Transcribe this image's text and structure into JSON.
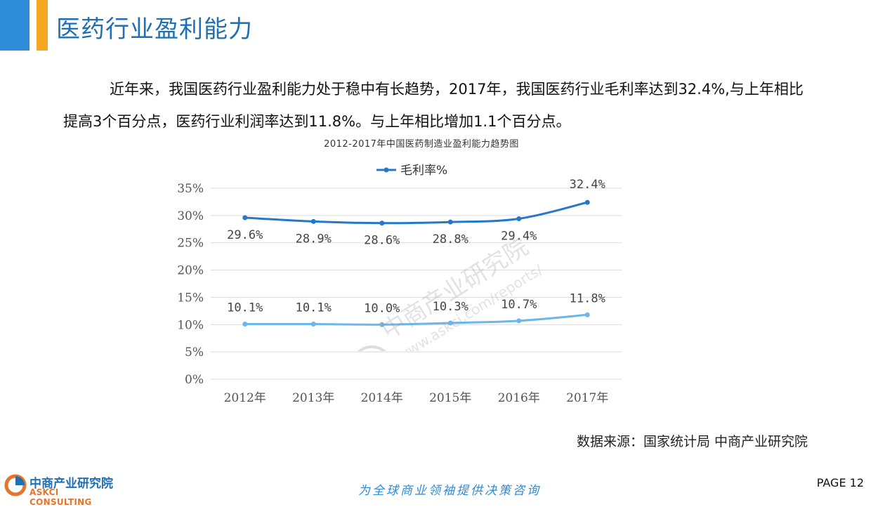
{
  "header": {
    "title": "医药行业盈利能力"
  },
  "intro": {
    "text": "近年来，我国医药行业盈利能力处于稳中有长趋势，2017年，我国医药行业毛利率达到32.4%,与上年相比提高3个百分点，医药行业利润率达到11.8%。与上年相比增加1.1个百分点。"
  },
  "chart_data": {
    "type": "line",
    "title": "2012-2017年中国医药制造业盈利能力趋势图",
    "categories": [
      "2012年",
      "2013年",
      "2014年",
      "2015年",
      "2016年",
      "2017年"
    ],
    "series": [
      {
        "name": "毛利率%",
        "values": [
          29.6,
          28.9,
          28.6,
          28.8,
          29.4,
          32.4
        ],
        "labels": [
          "29.6%",
          "28.9%",
          "28.6%",
          "28.8%",
          "29.4%",
          "32.4%"
        ],
        "color": "#2478c8"
      },
      {
        "name": "",
        "values": [
          10.1,
          10.1,
          10.0,
          10.3,
          10.7,
          11.8
        ],
        "labels": [
          "10.1%",
          "10.1%",
          "10.0%",
          "10.3%",
          "10.7%",
          "11.8%"
        ],
        "color": "#6cb6ea"
      }
    ],
    "yticks": [
      "0%",
      "5%",
      "10%",
      "15%",
      "20%",
      "25%",
      "30%",
      "35%"
    ],
    "ylim": [
      0,
      35
    ],
    "grid": true,
    "legend": "top"
  },
  "source": {
    "text": "数据来源：国家统计局 中商产业研究院"
  },
  "footer": {
    "logo_cn": "中商产业研究院",
    "logo_en": "ASKCI CONSULTING",
    "slogan": "为全球商业领袖提供决策咨询",
    "page": "PAGE 12"
  },
  "watermark": {
    "cn": "中商产业研究院",
    "url": "www.askci.com/reports/"
  }
}
